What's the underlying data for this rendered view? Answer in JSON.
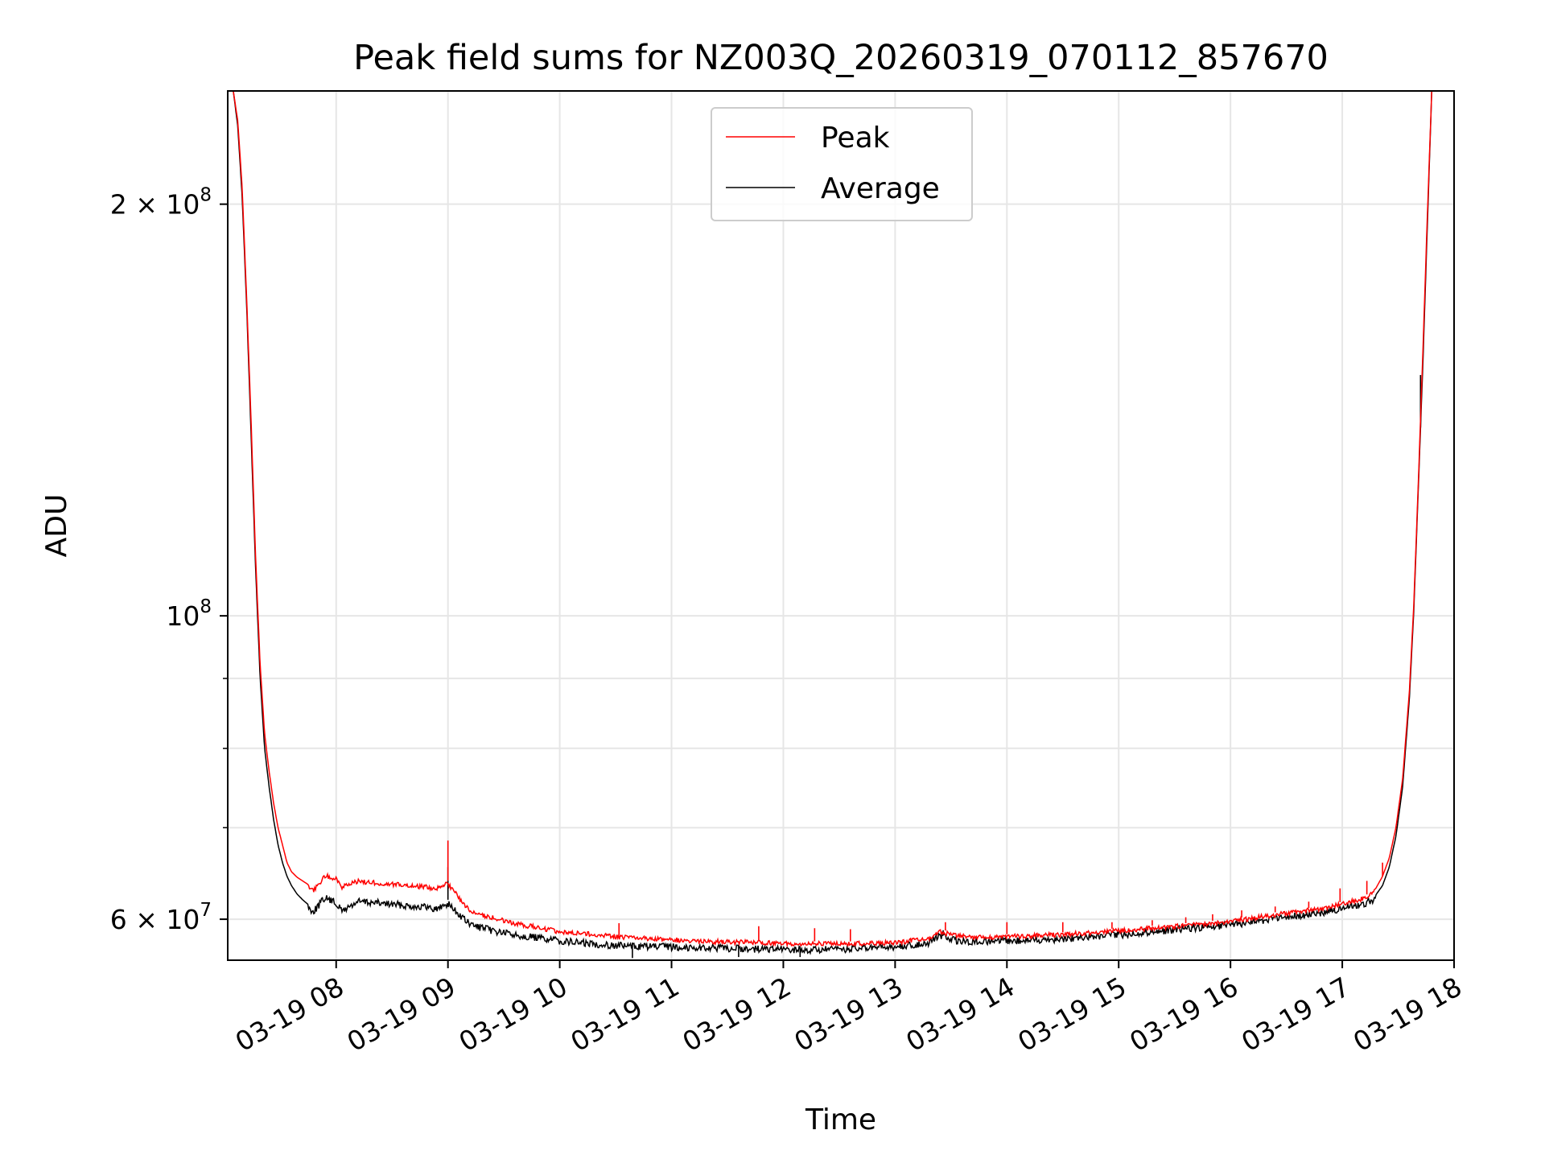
{
  "chart_data": {
    "type": "line",
    "title": "Peak field sums for NZ003Q_20260319_070112_857670",
    "xlabel": "Time",
    "ylabel": "ADU",
    "yscale": "log",
    "xlim": [
      7.03,
      18.0
    ],
    "ylim": [
      56000000,
      242000000
    ],
    "x_unit": "hours on 03-19",
    "x_ticks": [
      {
        "value": 8,
        "label": "03-19 08"
      },
      {
        "value": 9,
        "label": "03-19 09"
      },
      {
        "value": 10,
        "label": "03-19 10"
      },
      {
        "value": 11,
        "label": "03-19 11"
      },
      {
        "value": 12,
        "label": "03-19 12"
      },
      {
        "value": 13,
        "label": "03-19 13"
      },
      {
        "value": 14,
        "label": "03-19 14"
      },
      {
        "value": 15,
        "label": "03-19 15"
      },
      {
        "value": 16,
        "label": "03-19 16"
      },
      {
        "value": 17,
        "label": "03-19 17"
      },
      {
        "value": 18,
        "label": "03-19 18"
      }
    ],
    "y_ticks_major": [
      {
        "value": 200000000,
        "label_base": "2 × 10",
        "label_exp": "8"
      },
      {
        "value": 100000000,
        "label_base": "10",
        "label_exp": "8"
      },
      {
        "value": 60000000,
        "label_base": "6 × 10",
        "label_exp": "7"
      }
    ],
    "y_ticks_minor": [
      70000000,
      80000000,
      90000000
    ],
    "grid": true,
    "legend_position": "upper-center",
    "series": [
      {
        "name": "Peak",
        "color": "#ff0000",
        "x": [
          7.08,
          7.12,
          7.16,
          7.2,
          7.24,
          7.28,
          7.32,
          7.36,
          7.4,
          7.44,
          7.48,
          7.52,
          7.56,
          7.6,
          7.65,
          7.7,
          7.75,
          7.8,
          7.9,
          8.0,
          8.05,
          8.2,
          8.4,
          8.6,
          8.8,
          8.9,
          9.0,
          9.1,
          9.2,
          9.4,
          9.6,
          9.8,
          10.0,
          10.3,
          10.6,
          11.0,
          11.4,
          11.8,
          12.2,
          12.6,
          13.0,
          13.3,
          13.4,
          13.55,
          13.7,
          14.0,
          14.5,
          15.0,
          15.5,
          16.0,
          16.4,
          16.8,
          17.0,
          17.2,
          17.3,
          17.36,
          17.42,
          17.48,
          17.54,
          17.6,
          17.64,
          17.68,
          17.72,
          17.76,
          17.8
        ],
        "y": [
          242000000,
          230000000,
          205000000,
          170000000,
          138000000,
          110000000,
          92000000,
          82000000,
          77000000,
          73000000,
          70000000,
          68000000,
          66000000,
          65000000,
          64400000,
          64000000,
          63600000,
          63200000,
          64800000,
          64500000,
          63600000,
          64200000,
          64000000,
          63800000,
          63600000,
          63400000,
          64000000,
          62400000,
          61000000,
          60400000,
          59800000,
          59400000,
          59000000,
          58700000,
          58400000,
          58200000,
          58000000,
          57900000,
          57800000,
          57800000,
          57900000,
          58300000,
          59000000,
          58600000,
          58400000,
          58500000,
          58700000,
          59100000,
          59500000,
          60000000,
          60700000,
          61300000,
          61800000,
          62400000,
          63200000,
          64500000,
          66500000,
          70000000,
          76000000,
          88000000,
          102000000,
          125000000,
          155000000,
          195000000,
          242000000
        ],
        "spikes": [
          {
            "x": 9.0,
            "y": 68500000
          },
          {
            "x": 10.53,
            "y": 59600000
          },
          {
            "x": 11.78,
            "y": 59300000
          },
          {
            "x": 12.28,
            "y": 59100000
          },
          {
            "x": 12.6,
            "y": 59000000
          },
          {
            "x": 13.45,
            "y": 59700000
          },
          {
            "x": 14.0,
            "y": 59700000
          },
          {
            "x": 14.5,
            "y": 59700000
          },
          {
            "x": 14.94,
            "y": 59700000
          },
          {
            "x": 15.3,
            "y": 59900000
          },
          {
            "x": 15.6,
            "y": 60200000
          },
          {
            "x": 15.84,
            "y": 60500000
          },
          {
            "x": 16.1,
            "y": 60900000
          },
          {
            "x": 16.4,
            "y": 61300000
          },
          {
            "x": 16.7,
            "y": 61800000
          },
          {
            "x": 16.98,
            "y": 63200000
          },
          {
            "x": 17.22,
            "y": 64000000
          },
          {
            "x": 17.36,
            "y": 66000000
          }
        ]
      },
      {
        "name": "Average",
        "color": "#000000",
        "x": [
          7.08,
          7.12,
          7.16,
          7.2,
          7.24,
          7.28,
          7.32,
          7.36,
          7.4,
          7.44,
          7.48,
          7.52,
          7.56,
          7.6,
          7.65,
          7.7,
          7.75,
          7.8,
          7.9,
          8.0,
          8.05,
          8.2,
          8.4,
          8.6,
          8.8,
          8.9,
          9.0,
          9.1,
          9.2,
          9.4,
          9.6,
          9.8,
          10.0,
          10.3,
          10.6,
          11.0,
          11.4,
          11.8,
          12.2,
          12.6,
          13.0,
          13.3,
          13.4,
          13.55,
          13.7,
          14.0,
          14.5,
          15.0,
          15.5,
          16.0,
          16.4,
          16.8,
          17.0,
          17.2,
          17.3,
          17.36,
          17.42,
          17.48,
          17.54,
          17.6,
          17.64,
          17.68,
          17.72,
          17.76,
          17.8
        ],
        "y": [
          242000000,
          228000000,
          202000000,
          168000000,
          135000000,
          108000000,
          90000000,
          80000000,
          75000000,
          71000000,
          68000000,
          66000000,
          64500000,
          63500000,
          62600000,
          62000000,
          61500000,
          61200000,
          62600000,
          62000000,
          61200000,
          62200000,
          62000000,
          61800000,
          61600000,
          61400000,
          62000000,
          60800000,
          59800000,
          59200000,
          58800000,
          58500000,
          58200000,
          57900000,
          57700000,
          57600000,
          57500000,
          57400000,
          57300000,
          57400000,
          57600000,
          58000000,
          58700000,
          58200000,
          58100000,
          58200000,
          58400000,
          58800000,
          59300000,
          59800000,
          60400000,
          61000000,
          61500000,
          62000000,
          62500000,
          63500000,
          65500000,
          69000000,
          75000000,
          87000000,
          101000000,
          124000000,
          152000000,
          192000000,
          242000000
        ],
        "spikes": [
          {
            "x": 9.0,
            "y": 65500000
          },
          {
            "x": 10.65,
            "y": 56200000
          },
          {
            "x": 11.6,
            "y": 56300000
          },
          {
            "x": 12.15,
            "y": 56300000
          },
          {
            "x": 13.43,
            "y": 58900000
          },
          {
            "x": 16.96,
            "y": 61500000
          },
          {
            "x": 17.7,
            "y": 150000000
          }
        ]
      }
    ]
  }
}
